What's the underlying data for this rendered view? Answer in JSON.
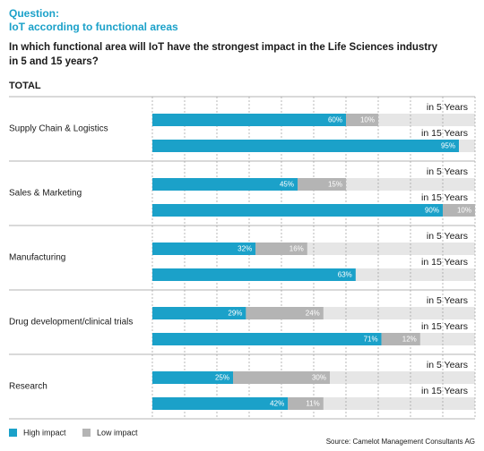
{
  "chart_data": {
    "type": "bar",
    "orientation": "horizontal",
    "stacked": true,
    "title": "Question:",
    "subtitle": "IoT according to functional areas",
    "question": [
      "In which functional area will IoT have the strongest impact in the Life Sciences industry",
      "in 5 and 15 years?"
    ],
    "section": "TOTAL",
    "groups": [
      "Supply Chain & Logistics",
      "Sales & Marketing",
      "Manufacturing",
      "Drug development/clinical trials",
      "Research"
    ],
    "categories": [
      "in 5 Years",
      "in 15 Years",
      "in 5 Years",
      "in 15 Years",
      "in 5 Years",
      "in 15 Years",
      "in 5 Years",
      "in 15 Years",
      "in 5 Years",
      "in 15 Years"
    ],
    "series": [
      {
        "name": "High impact",
        "color": "#1ba1c9",
        "values": [
          60,
          95,
          45,
          90,
          32,
          63,
          29,
          71,
          25,
          42
        ],
        "value_labels": [
          "60%",
          "95%",
          "45%",
          "90%",
          "32%",
          "63%",
          "29%",
          "71%",
          "25%",
          "42%"
        ]
      },
      {
        "name": "Low impact",
        "color": "#b4b4b4",
        "values": [
          10,
          null,
          15,
          10,
          16,
          null,
          24,
          12,
          30,
          11
        ],
        "value_labels": [
          "10%",
          null,
          "15%",
          "10%",
          "16%",
          null,
          "24%",
          "12%",
          "30%",
          "11%"
        ]
      }
    ],
    "xlim": [
      0,
      100
    ],
    "xticks": [
      0,
      10,
      20,
      30,
      40,
      50,
      60,
      70,
      80,
      90,
      100
    ],
    "grid": true,
    "legend": "bottom-left",
    "source": "Source: Camelot Management Consultants AG"
  }
}
